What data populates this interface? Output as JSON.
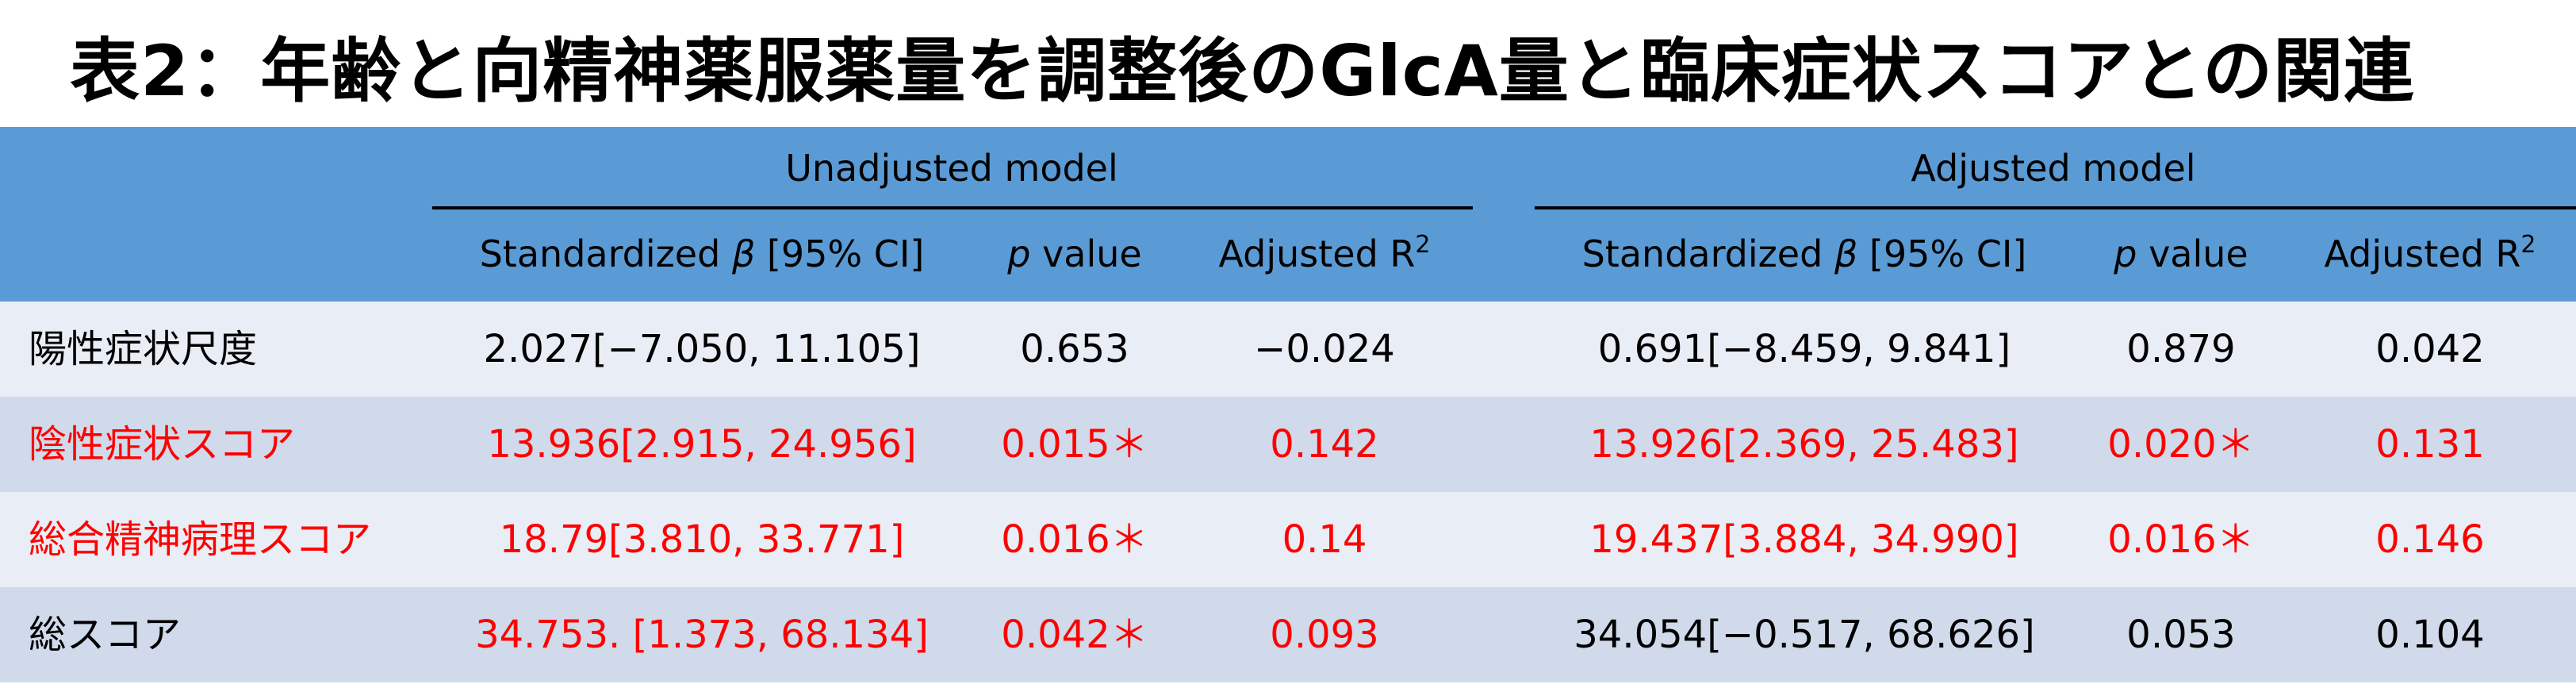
{
  "title": "表2：年齢と向精神薬服薬量を調整後のGlcA量と臨床症状スコアとの関連",
  "header": {
    "unadjusted_label": "Unadjusted model",
    "adjusted_label": "Adjusted model",
    "unadjusted_columns": {
      "beta_pre": "Standardized ",
      "beta_symbol": "β",
      "beta_post": " [95% CI]",
      "p_symbol": "p",
      "p_post": " value",
      "r2_pre": "Adjusted R",
      "r2_sup": "2"
    },
    "adjusted_columns": {
      "beta_pre": "Standardized ",
      "beta_symbol": "β",
      "beta_post": " [95% CI]",
      "p_symbol": "p",
      "p_post": " value",
      "r2_pre": "Adjusted R",
      "r2_sup": "2"
    }
  },
  "rows": [
    {
      "label": "陽性症状尺度",
      "u_beta": "2.027[−7.050, 11.105]",
      "u_p": "0.653",
      "u_r2": "−0.024",
      "a_beta": "0.691[−8.459, 9.841]",
      "a_p": "0.879",
      "a_r2": "0.042"
    },
    {
      "label": "陰性症状スコア",
      "u_beta": "13.936[2.915, 24.956]",
      "u_p": "0.015＊",
      "u_r2": "0.142",
      "a_beta": "13.926[2.369, 25.483]",
      "a_p": "0.020＊",
      "a_r2": "0.131"
    },
    {
      "label": "総合精神病理スコア",
      "u_beta": "18.79[3.810, 33.771]",
      "u_p": "0.016＊",
      "u_r2": "0.14",
      "a_beta": "19.437[3.884, 34.990]",
      "a_p": "0.016＊",
      "a_r2": "0.146"
    },
    {
      "label": "総スコア",
      "u_beta": "34.753. [1.373, 68.134]",
      "u_p": "0.042＊",
      "u_r2": "0.093",
      "a_beta": "34.054[−0.517, 68.626]",
      "a_p": "0.053",
      "a_r2": "0.104"
    }
  ],
  "colors": {
    "header_bg": "#5b9bd5",
    "row_light": "#e9edf5",
    "row_dark": "#d0daea",
    "significant_text": "#ff0000",
    "normal_text": "#000000"
  }
}
